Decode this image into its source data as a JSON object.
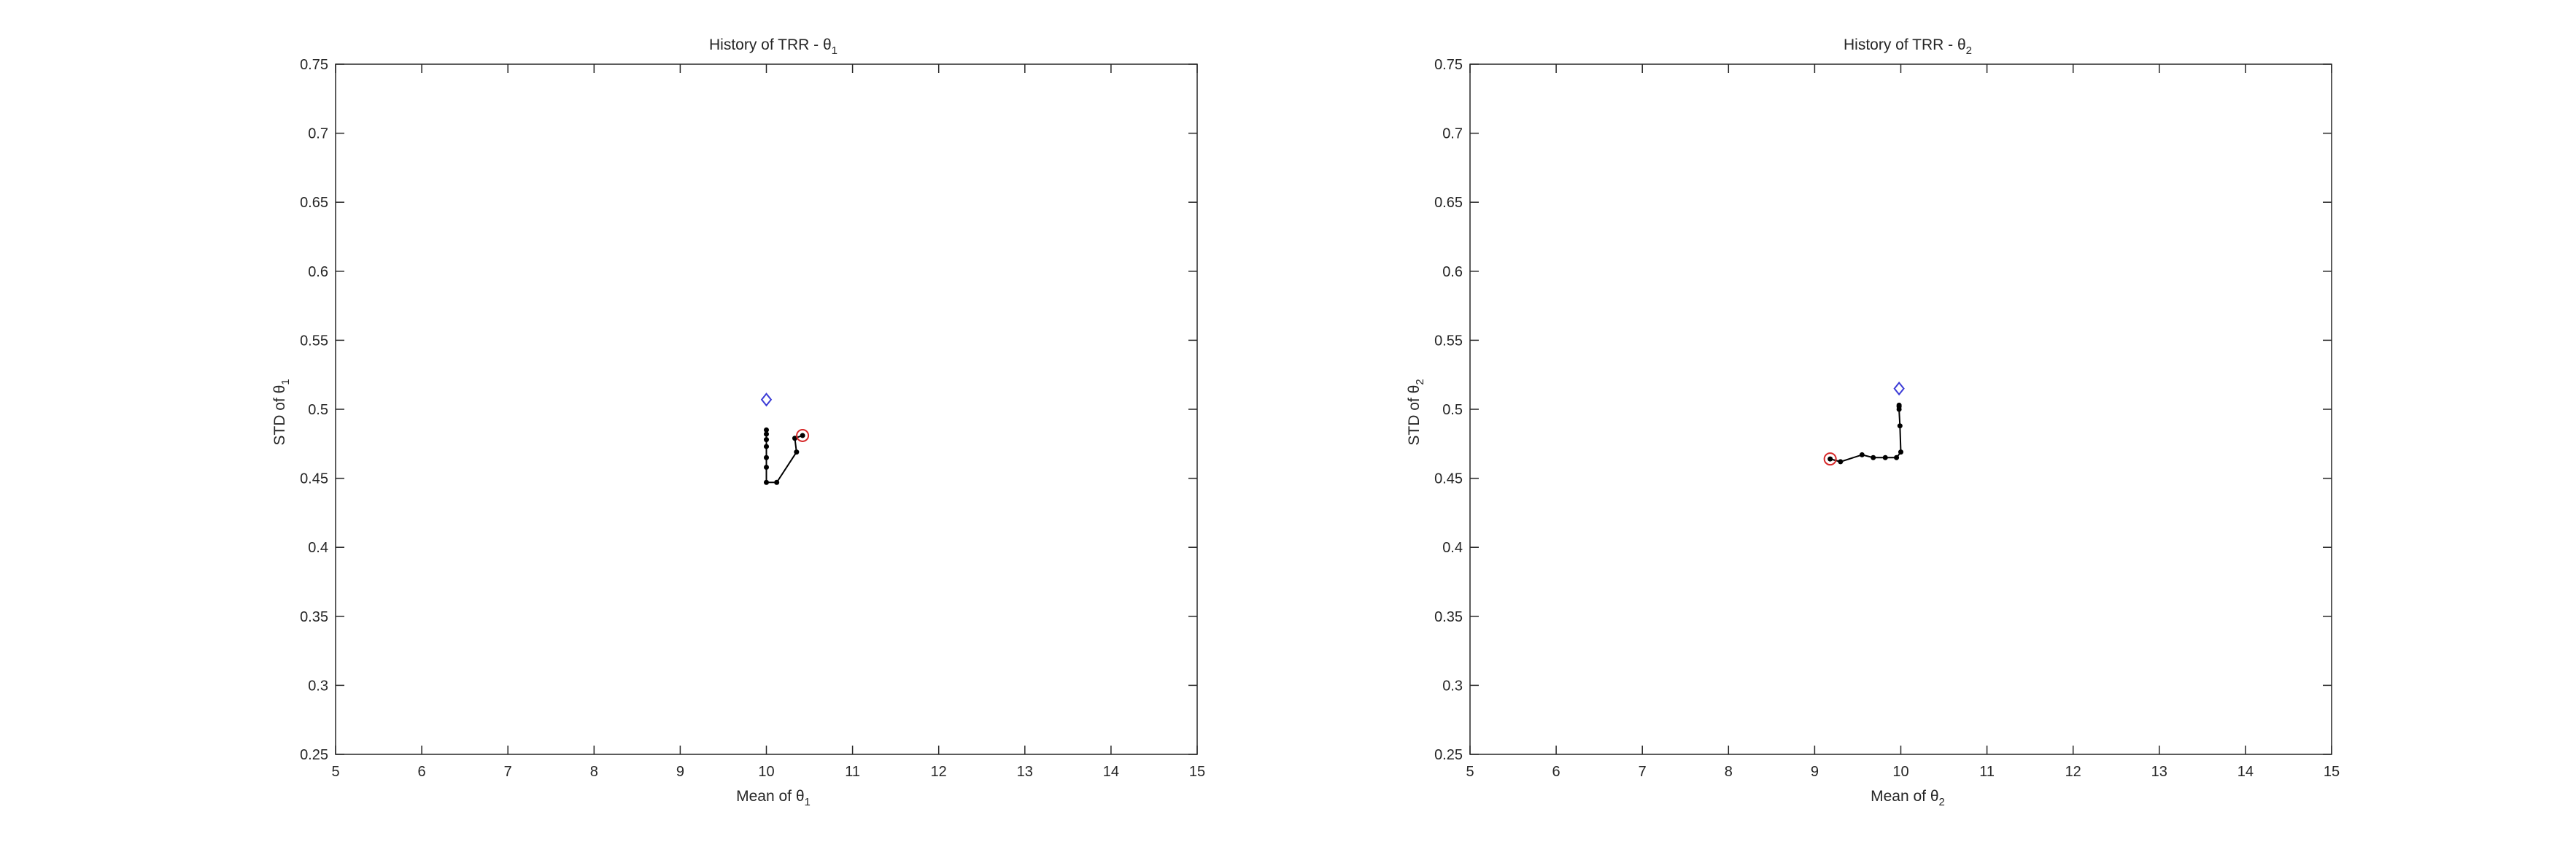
{
  "chart_data": [
    {
      "type": "line",
      "title": "History of TRR - θ",
      "title_subscript": "1",
      "xlabel": "Mean of θ",
      "xlabel_subscript": "1",
      "ylabel": "STD of θ",
      "ylabel_subscript": "1",
      "xlim": [
        5,
        15
      ],
      "ylim": [
        0.25,
        0.75
      ],
      "xticks": [
        5,
        6,
        7,
        8,
        9,
        10,
        11,
        12,
        13,
        14,
        15
      ],
      "yticks": [
        0.25,
        0.3,
        0.35,
        0.4,
        0.45,
        0.5,
        0.55,
        0.6,
        0.65,
        0.7,
        0.75
      ],
      "xtick_labels": [
        "5",
        "6",
        "7",
        "8",
        "9",
        "10",
        "11",
        "12",
        "13",
        "14",
        "15"
      ],
      "ytick_labels": [
        "0.25",
        "0.3",
        "0.35",
        "0.4",
        "0.45",
        "0.5",
        "0.55",
        "0.6",
        "0.65",
        "0.7",
        "0.75"
      ],
      "grid": false,
      "series": [
        {
          "marker": "dot",
          "color": "#000000",
          "x": [
            10.42,
            10.33,
            10.35,
            10.12,
            10.0,
            10.0,
            10.0,
            10.0,
            10.0,
            10.0,
            10.0
          ],
          "y": [
            0.481,
            0.479,
            0.469,
            0.447,
            0.447,
            0.458,
            0.465,
            0.473,
            0.478,
            0.482,
            0.485
          ]
        }
      ],
      "reference_point": {
        "marker": "diamond",
        "color": "#3b3bd6",
        "x": 10.0,
        "y": 0.507
      },
      "start_point": {
        "marker": "circle",
        "color": "#d62728",
        "x": 10.42,
        "y": 0.481
      }
    },
    {
      "type": "line",
      "title": "History of TRR - θ",
      "title_subscript": "2",
      "xlabel": "Mean of θ",
      "xlabel_subscript": "2",
      "ylabel": "STD of θ",
      "ylabel_subscript": "2",
      "xlim": [
        5,
        15
      ],
      "ylim": [
        0.25,
        0.75
      ],
      "xticks": [
        5,
        6,
        7,
        8,
        9,
        10,
        11,
        12,
        13,
        14,
        15
      ],
      "yticks": [
        0.25,
        0.3,
        0.35,
        0.4,
        0.45,
        0.5,
        0.55,
        0.6,
        0.65,
        0.7,
        0.75
      ],
      "xtick_labels": [
        "5",
        "6",
        "7",
        "8",
        "9",
        "10",
        "11",
        "12",
        "13",
        "14",
        "15"
      ],
      "ytick_labels": [
        "0.25",
        "0.3",
        "0.35",
        "0.4",
        "0.45",
        "0.5",
        "0.55",
        "0.6",
        "0.65",
        "0.7",
        "0.75"
      ],
      "grid": false,
      "series": [
        {
          "marker": "dot",
          "color": "#000000",
          "x": [
            9.18,
            9.3,
            9.55,
            9.68,
            9.82,
            9.95,
            10.0,
            9.99,
            9.98,
            9.98,
            9.98
          ],
          "y": [
            0.464,
            0.462,
            0.467,
            0.465,
            0.465,
            0.465,
            0.469,
            0.488,
            0.5,
            0.502,
            0.503
          ]
        }
      ],
      "reference_point": {
        "marker": "diamond",
        "color": "#3b3bd6",
        "x": 9.98,
        "y": 0.515
      },
      "start_point": {
        "marker": "circle",
        "color": "#d62728",
        "x": 9.18,
        "y": 0.464
      }
    }
  ]
}
